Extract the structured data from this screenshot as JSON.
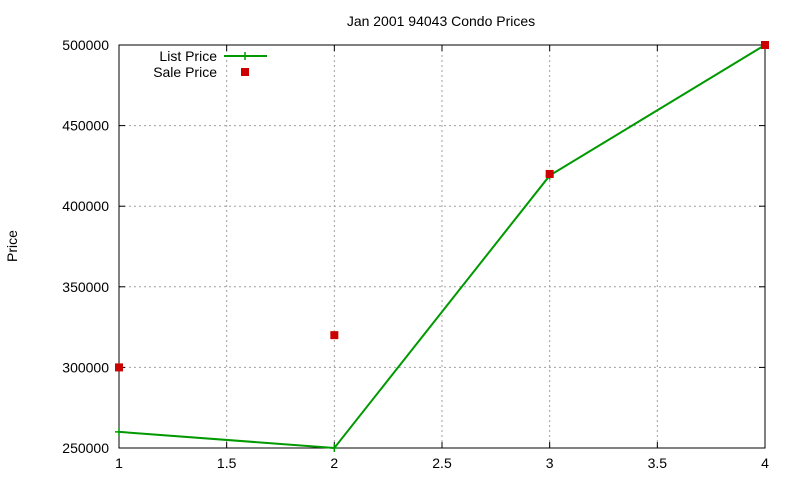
{
  "chart_data": {
    "type": "line",
    "title": "Jan 2001 94043 Condo Prices",
    "xlabel": "",
    "ylabel": "Price",
    "xlim": [
      1,
      4
    ],
    "ylim": [
      250000,
      500000
    ],
    "x_ticks": [
      1,
      1.5,
      2,
      2.5,
      3,
      3.5,
      4
    ],
    "y_ticks": [
      250000,
      300000,
      350000,
      400000,
      450000,
      500000
    ],
    "grid": true,
    "legend_position": "top-left",
    "series": [
      {
        "name": "List Price",
        "style": "line-with-plus-markers",
        "color": "#009900",
        "x": [
          1,
          2,
          3,
          4
        ],
        "y": [
          260000,
          250000,
          419000,
          500000
        ]
      },
      {
        "name": "Sale Price",
        "style": "square-markers",
        "color": "#cc0000",
        "x": [
          1,
          2,
          3,
          4
        ],
        "y": [
          300000,
          320000,
          420000,
          500000
        ]
      }
    ]
  }
}
